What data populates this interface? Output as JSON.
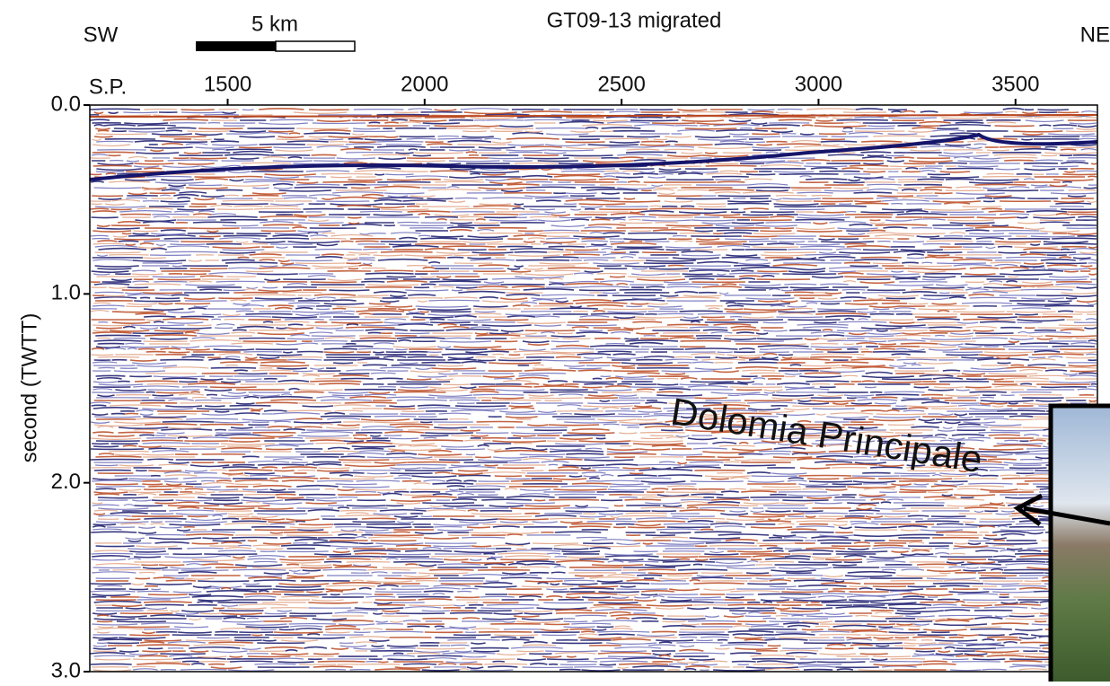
{
  "chart_data": {
    "type": "seismic",
    "title": "GT09-13 migrated",
    "y_label": "second (TWTT)",
    "left_label": "SW",
    "right_label": "NE",
    "scale_label": "5 km",
    "x_axis_label": "S.P.",
    "annotation": "Dolomia Principale",
    "xlim": [
      1150,
      3708
    ],
    "xticks": [
      1500,
      2000,
      2500,
      3000,
      3500
    ],
    "ylim": [
      0,
      3
    ],
    "yticks": [
      {
        "value": 0,
        "label": "0.0"
      },
      {
        "value": 1,
        "label": "1.0"
      },
      {
        "value": 2,
        "label": "2.0"
      },
      {
        "value": 3,
        "label": "3.0"
      }
    ]
  }
}
